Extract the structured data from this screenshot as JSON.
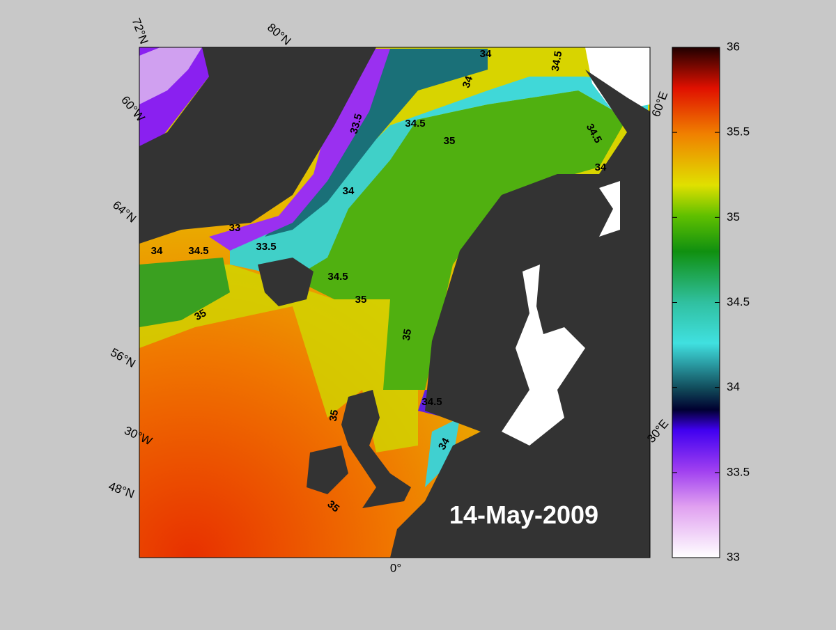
{
  "map": {
    "date": "14-May-2009",
    "graticule_labels": [
      "72°N",
      "80°N",
      "60°W",
      "64°N",
      "56°N",
      "30°W",
      "48°N",
      "0°",
      "30°E",
      "60°E"
    ],
    "contour_labels": [
      34,
      34.5,
      34,
      33.5,
      34.5,
      35,
      34.5,
      34,
      34,
      33,
      34,
      34.5,
      33.5,
      34.5,
      35,
      35,
      35,
      34.5,
      35,
      34,
      35
    ]
  },
  "colorbar": {
    "lim": [
      33,
      36
    ],
    "ticks": [
      33,
      33.5,
      34,
      34.5,
      35,
      35.5,
      36
    ]
  }
}
